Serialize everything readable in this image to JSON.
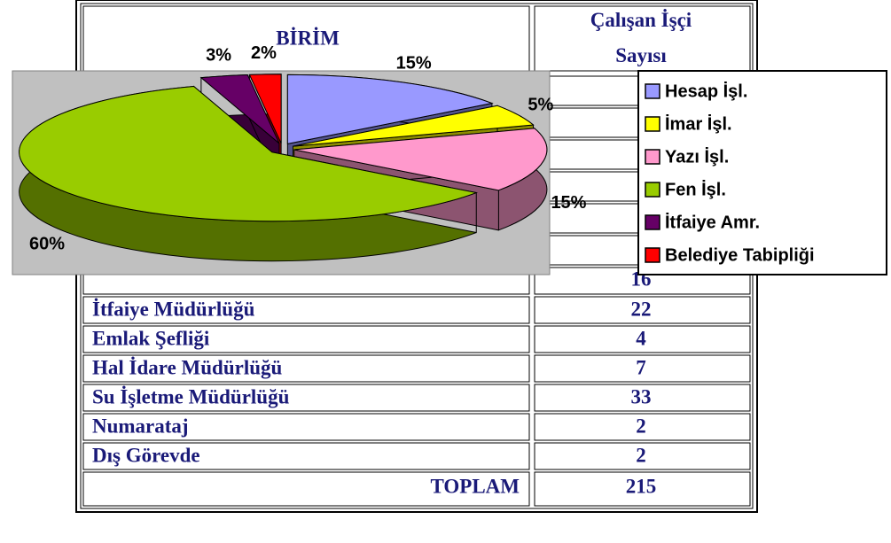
{
  "table": {
    "header": [
      "BİRİM",
      "Çalışan İşçi Sayısı"
    ],
    "partial_count": 16,
    "rows": [
      [
        "İtfaiye Müdürlüğü",
        22
      ],
      [
        "Emlak Şefliği",
        4
      ],
      [
        "Hal İdare Müdürlüğü",
        7
      ],
      [
        "Su İşletme Müdürlüğü",
        33
      ],
      [
        "Numarataj",
        2
      ],
      [
        "Dış Görevde",
        2
      ]
    ],
    "total": [
      "TOPLAM",
      215
    ]
  },
  "chart_data": {
    "type": "pie",
    "categories": [
      "Hesap İşl.",
      "İmar İşl.",
      "Yazı İşl.",
      "Fen İşl.",
      "İtfaiye Amr.",
      "Belediye Tabipliği"
    ],
    "values": [
      15,
      5,
      15,
      60,
      3,
      2
    ],
    "value_labels": [
      "15%",
      "5%",
      "15%",
      "60%",
      "3%",
      "2%"
    ],
    "colors": [
      "#9999ff",
      "#ffff00",
      "#ff99cc",
      "#99cc00",
      "#660066",
      "#ff0000"
    ],
    "legend": "right"
  }
}
